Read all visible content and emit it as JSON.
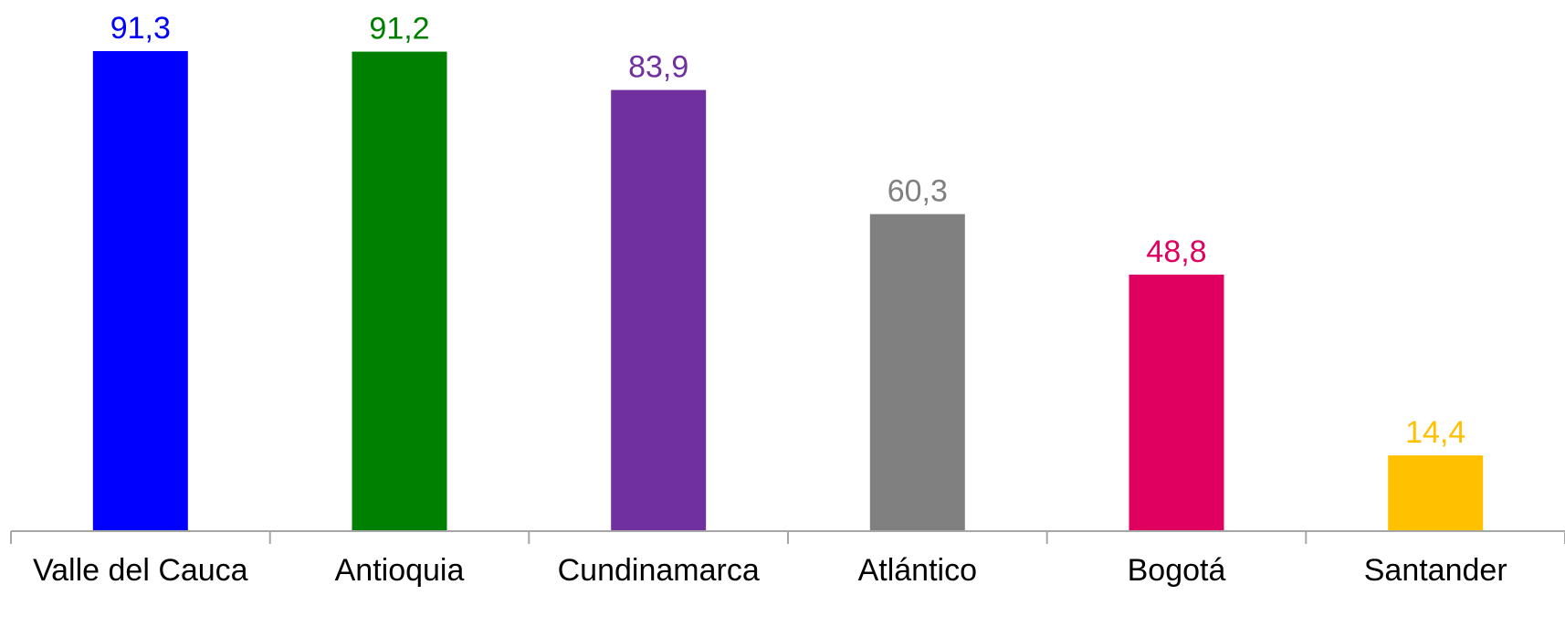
{
  "chart_data": {
    "type": "bar",
    "categories": [
      "Valle del Cauca",
      "Antioquia",
      "Cundinamarca",
      "Atlántico",
      "Bogotá",
      "Santander"
    ],
    "values": [
      91.3,
      91.2,
      83.9,
      60.3,
      48.8,
      14.4
    ],
    "value_labels": [
      "91,3",
      "91,2",
      "83,9",
      "60,3",
      "48,8",
      "14,4"
    ],
    "colors": [
      "#0000FF",
      "#008000",
      "#7030A0",
      "#808080",
      "#E0005F",
      "#FFC000"
    ],
    "title": "",
    "xlabel": "",
    "ylabel": "",
    "ylim": [
      0,
      100
    ],
    "grid": false,
    "legend": "none"
  }
}
